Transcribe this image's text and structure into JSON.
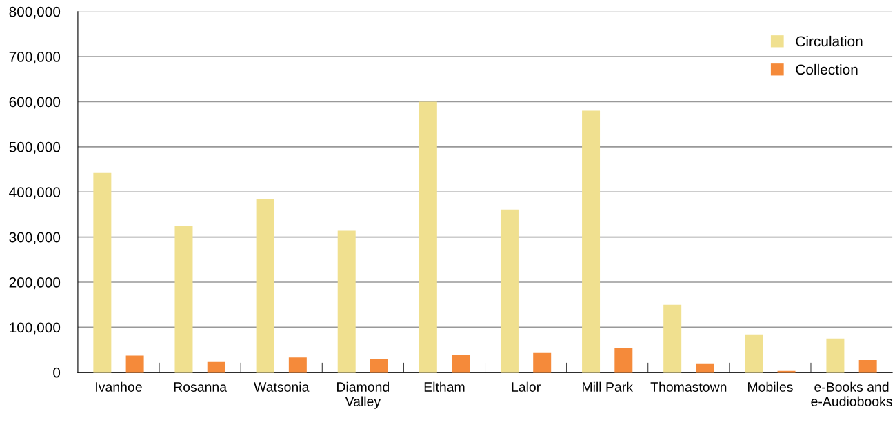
{
  "chart_data": {
    "type": "bar",
    "categories": [
      "Ivanhoe",
      "Rosanna",
      "Watsonia",
      "Diamond\nValley",
      "Eltham",
      "Lalor",
      "Mill Park",
      "Thomastown",
      "Mobiles",
      "e-Books and\ne-Audiobooks"
    ],
    "series": [
      {
        "name": "Circulation",
        "color": "#f0e08f",
        "values": [
          442000,
          325000,
          384000,
          314000,
          600000,
          361000,
          580000,
          150000,
          84000,
          75000
        ]
      },
      {
        "name": "Collection",
        "color": "#f58a3a",
        "values": [
          37000,
          23000,
          33000,
          30000,
          39000,
          43000,
          54000,
          20000,
          3000,
          27000
        ]
      }
    ],
    "ylim": [
      0,
      800000
    ],
    "yticks": [
      {
        "value": 0,
        "label": "0"
      },
      {
        "value": 100000,
        "label": "100,000"
      },
      {
        "value": 200000,
        "label": "200,000"
      },
      {
        "value": 300000,
        "label": "300,000"
      },
      {
        "value": 400000,
        "label": "400,000"
      },
      {
        "value": 500000,
        "label": "500,000"
      },
      {
        "value": 600000,
        "label": "600,000"
      },
      {
        "value": 700000,
        "label": "700,000"
      },
      {
        "value": 800000,
        "label": "800,000"
      }
    ],
    "grid": "y",
    "legend": "top right"
  }
}
